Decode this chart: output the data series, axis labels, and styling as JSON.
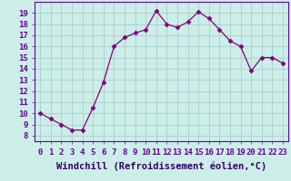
{
  "x": [
    0,
    1,
    2,
    3,
    4,
    5,
    6,
    7,
    8,
    9,
    10,
    11,
    12,
    13,
    14,
    15,
    16,
    17,
    18,
    19,
    20,
    21,
    22,
    23
  ],
  "y": [
    10.0,
    9.5,
    9.0,
    8.5,
    8.5,
    10.5,
    12.8,
    16.0,
    16.8,
    17.2,
    17.5,
    19.2,
    18.0,
    17.7,
    18.2,
    19.1,
    18.5,
    17.5,
    16.5,
    16.0,
    13.8,
    15.0,
    15.0,
    14.5
  ],
  "line_color": "#800080",
  "marker": "D",
  "marker_size": 2.5,
  "bg_color": "#cceee8",
  "grid_color": "#aacccc",
  "xlabel": "Windchill (Refroidissement éolien,°C)",
  "xlabel_fontsize": 7.5,
  "ylim": [
    7.5,
    20.0
  ],
  "xlim": [
    -0.5,
    23.5
  ],
  "yticks": [
    8,
    9,
    10,
    11,
    12,
    13,
    14,
    15,
    16,
    17,
    18,
    19
  ],
  "xticks": [
    0,
    1,
    2,
    3,
    4,
    5,
    6,
    7,
    8,
    9,
    10,
    11,
    12,
    13,
    14,
    15,
    16,
    17,
    18,
    19,
    20,
    21,
    22,
    23
  ],
  "tick_fontsize": 6.5,
  "spine_color": "#6600aa"
}
